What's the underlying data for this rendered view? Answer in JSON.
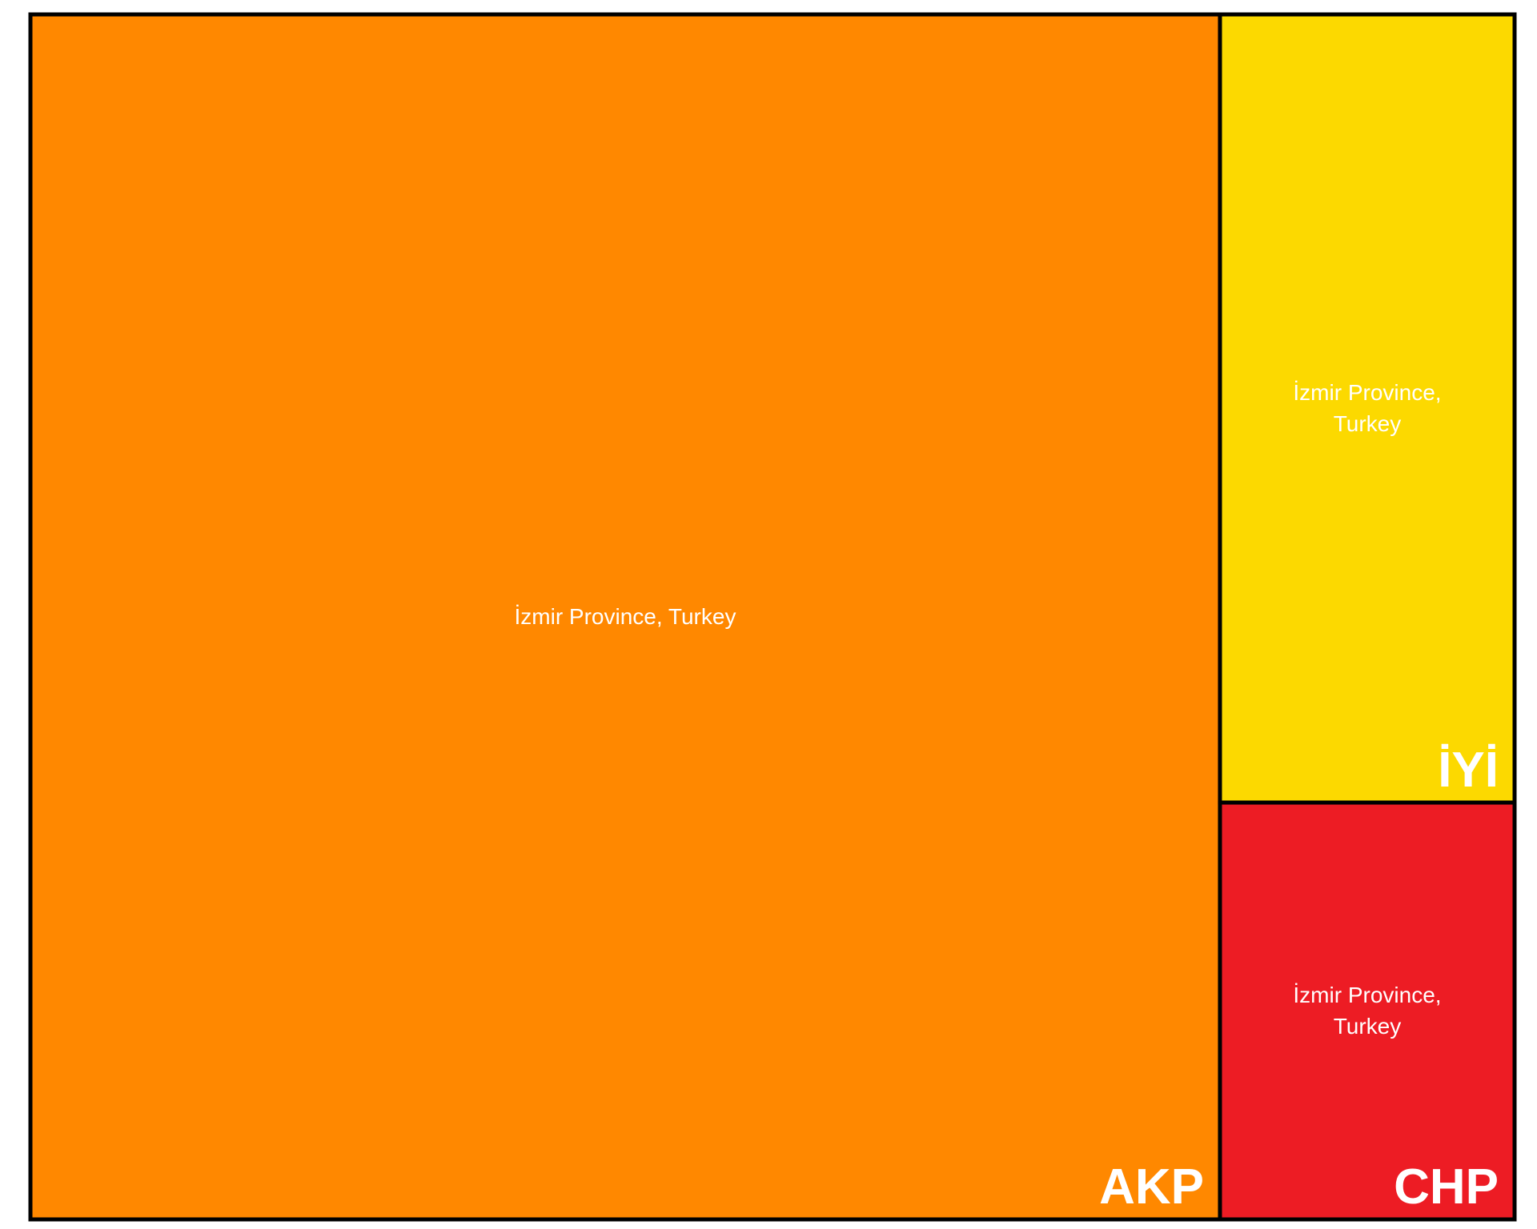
{
  "chart_data": {
    "type": "treemap",
    "title": "",
    "cells": [
      {
        "id": "akp",
        "party": "AKP",
        "region_line1": "İzmir Province, Turkey",
        "region_line2": "",
        "value": 64.2,
        "color": "#FF8800"
      },
      {
        "id": "iyi",
        "party": "İYİ",
        "region_line1": "İzmir Province,",
        "region_line2": "Turkey",
        "value": 10.4,
        "color": "#FCD900"
      },
      {
        "id": "chp",
        "party": "CHP",
        "region_line1": "İzmir Province,",
        "region_line2": "Turkey",
        "value": 5.5,
        "color": "#ED1C24"
      }
    ],
    "border_color": "#000000"
  }
}
